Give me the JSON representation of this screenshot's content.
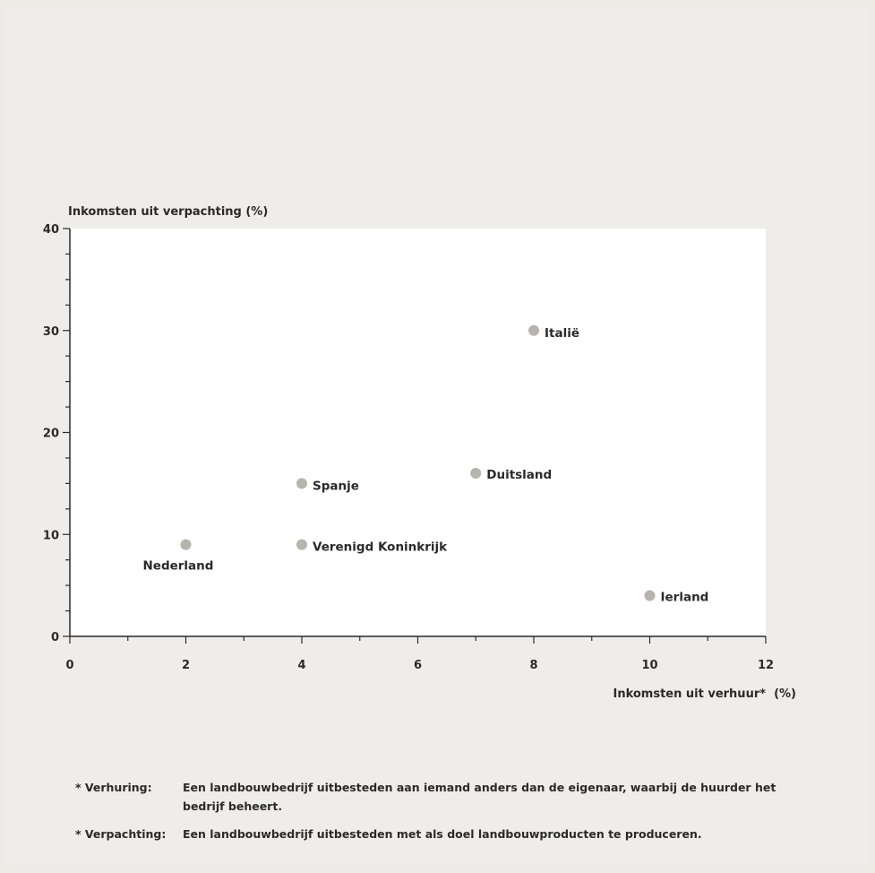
{
  "chart_data": {
    "type": "scatter",
    "title": "",
    "ylabel": "Inkomsten uit verpachting (%)",
    "xlabel": "Inkomsten uit verhuur*  (%)",
    "xlim": [
      0,
      12
    ],
    "ylim": [
      0,
      40
    ],
    "xticks": [
      "0",
      "2",
      "4",
      "6",
      "8",
      "10",
      "12"
    ],
    "yticks": [
      "0",
      "10",
      "20",
      "30",
      "40"
    ],
    "grid": false,
    "points": [
      {
        "x": 2,
        "y": 9,
        "label": "Nederland"
      },
      {
        "x": 4,
        "y": 15,
        "label": "Spanje"
      },
      {
        "x": 4,
        "y": 9,
        "label": "Verenigd Koninkrijk"
      },
      {
        "x": 7,
        "y": 16,
        "label": "Duitsland"
      },
      {
        "x": 8,
        "y": 30,
        "label": "Italië"
      },
      {
        "x": 10,
        "y": 4,
        "label": "Ierland"
      }
    ],
    "colors": {
      "plot_bg": "#ffffff",
      "marker": "#b7b3ad",
      "axis": "#2a2a2a"
    }
  },
  "footnotes": [
    {
      "term": "* Verhuring:",
      "text": "Een landbouwbedrijf uitbesteden aan iemand anders dan de eigenaar, waarbij de huurder het bedrijf beheert."
    },
    {
      "term": "* Verpachting:",
      "text": "Een landbouwbedrijf uitbesteden met als doel landbouwproducten te produceren."
    }
  ]
}
